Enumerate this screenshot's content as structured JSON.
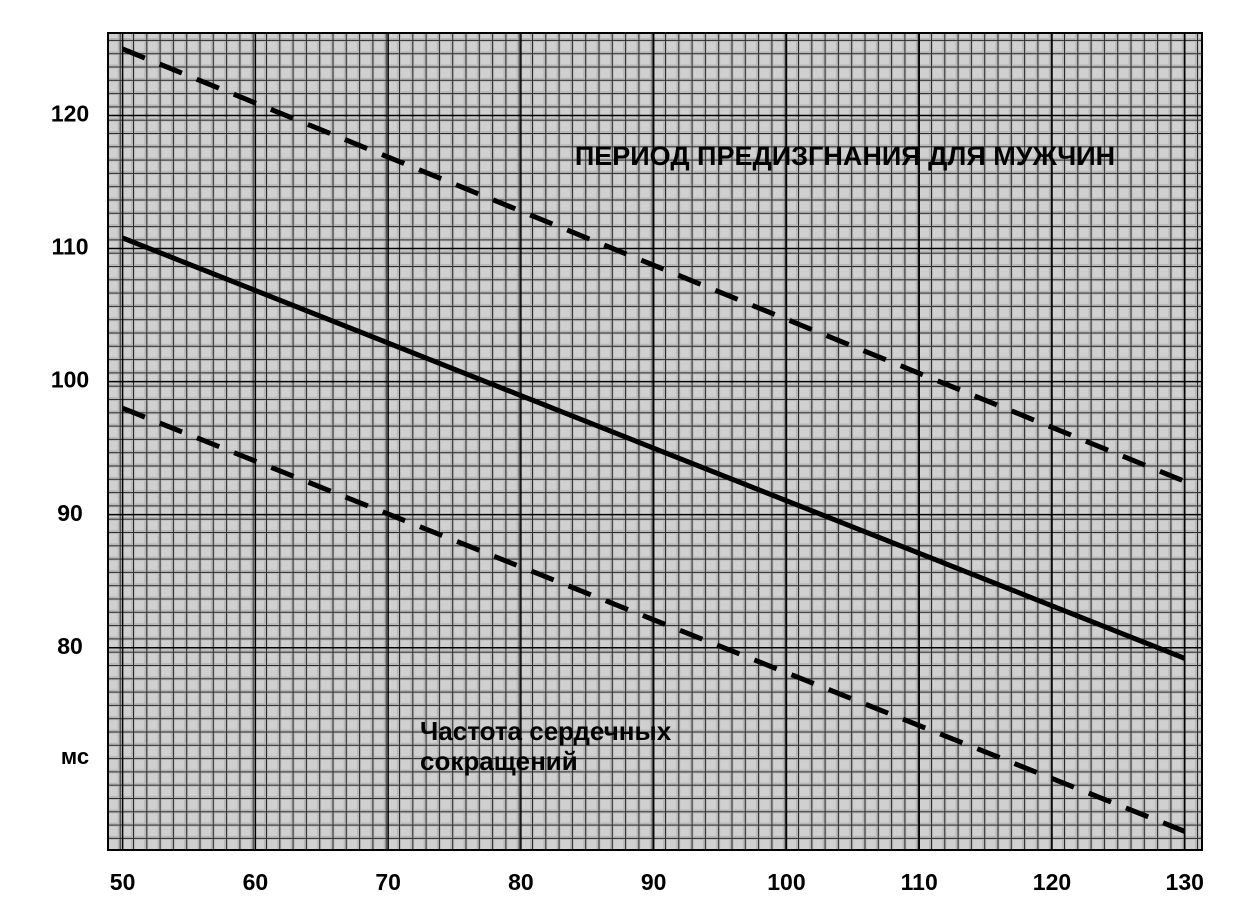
{
  "chart_data": {
    "type": "line",
    "title": "ПЕРИОД ПРЕДИЗГНАНИЯ ДЛЯ МУЖЧИН",
    "annotation": [
      "Частота сердечных",
      "сокращений"
    ],
    "ylabel": "мс",
    "x": [
      50,
      130
    ],
    "series": [
      {
        "color": "#000000",
        "line_style": "dashed",
        "values": [
          125.0,
          92.5
        ]
      },
      {
        "color": "#000000",
        "line_style": "solid",
        "values": [
          110.8,
          79.2
        ]
      },
      {
        "color": "#000000",
        "line_style": "dashed",
        "values": [
          98.0,
          66.2
        ]
      }
    ],
    "xlim": [
      48.9,
      131.3
    ],
    "ylim": [
      64.8,
      126.2
    ],
    "xticks": [
      50,
      60,
      70,
      80,
      90,
      100,
      110,
      120,
      130
    ],
    "yticks": [
      80,
      90,
      100,
      110,
      120
    ],
    "grid": true
  }
}
